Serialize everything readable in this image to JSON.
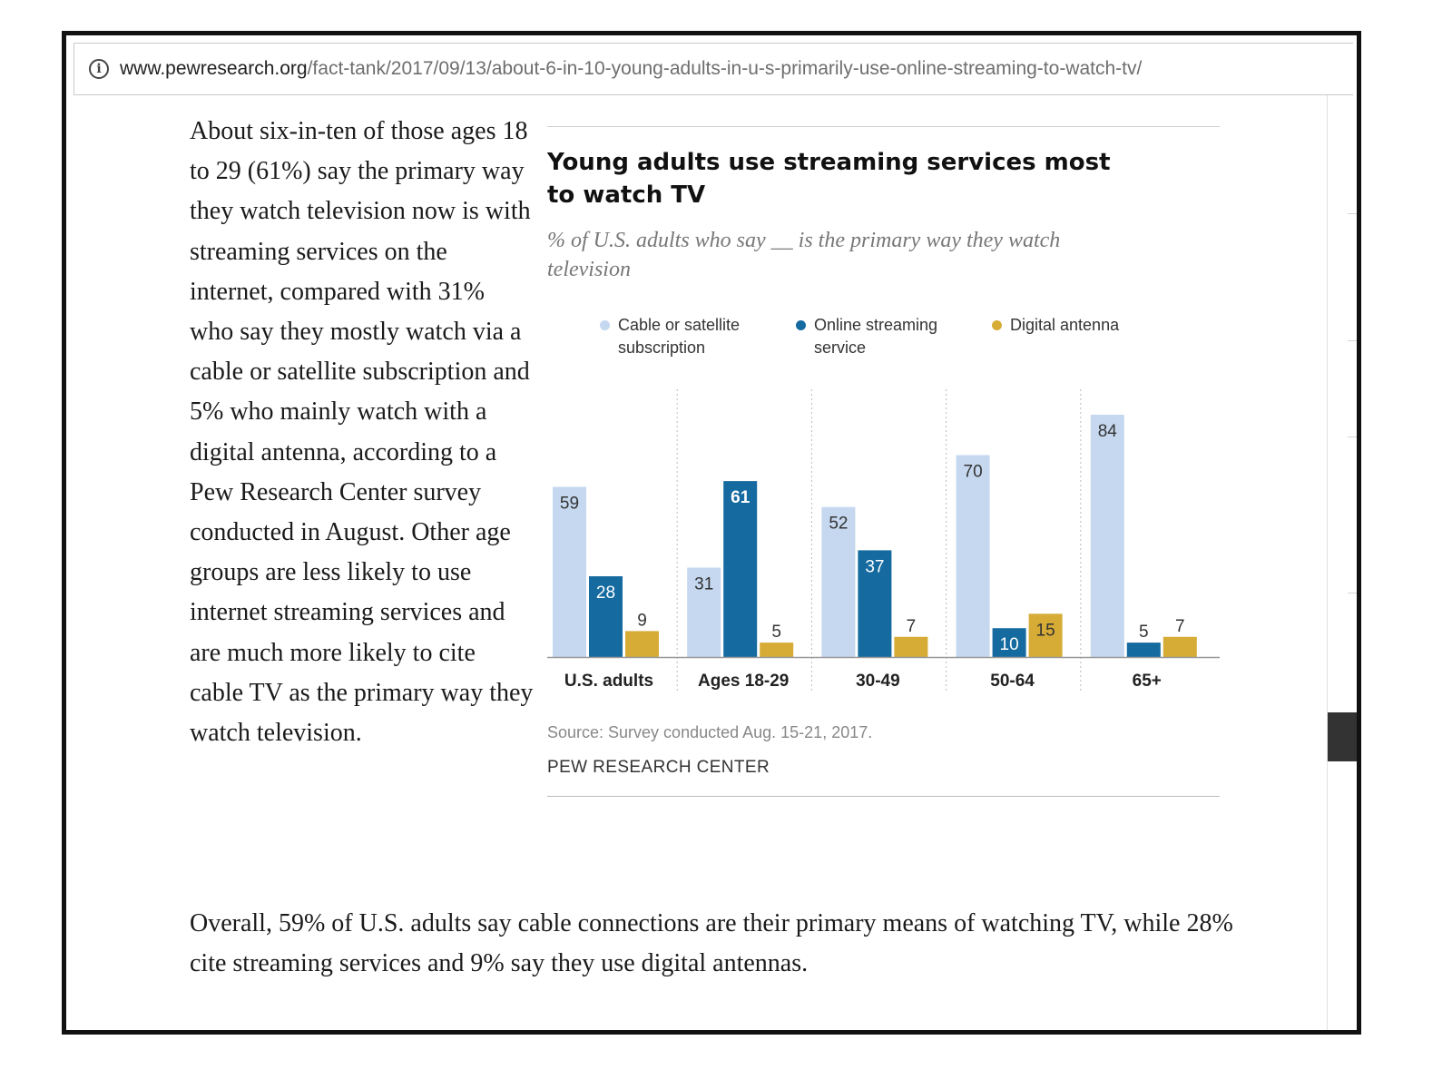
{
  "browser": {
    "url_domain": "www.pewresearch.org",
    "url_path": "/fact-tank/2017/09/13/about-6-in-10-young-adults-in-u-s-primarily-use-online-streaming-to-watch-tv/"
  },
  "article": {
    "paragraph1": "About six-in-ten of those ages 18 to 29 (61%) say the primary way they watch television now is with streaming services on the internet, compared with 31% who say they mostly watch via a cable or satellite subscription and 5% who mainly watch with a digital antenna, according to a Pew Research Center survey conducted in August. Other age groups are less likely to use internet streaming services and are much more likely to cite cable TV as the primary way they watch television.",
    "paragraph2": "Overall, 59% of U.S. adults say cable connections are their primary means of watching TV, while 28% cite streaming services and 9% say they use digital antennas."
  },
  "chart_data": {
    "type": "bar",
    "title": "Young adults use streaming services most to watch TV",
    "subtitle": "% of U.S. adults who say __ is the primary way they watch television",
    "categories": [
      "U.S. adults",
      "Ages 18-29",
      "30-49",
      "50-64",
      "65+"
    ],
    "series": [
      {
        "name": "Cable or satellite subscription",
        "color": "#c5d8ef",
        "values": [
          59,
          31,
          52,
          70,
          84
        ]
      },
      {
        "name": "Online streaming service",
        "color": "#156aa0",
        "values": [
          28,
          61,
          37,
          10,
          5
        ]
      },
      {
        "name": "Digital antenna",
        "color": "#d6ac37",
        "values": [
          9,
          5,
          7,
          15,
          7
        ]
      }
    ],
    "ylim": [
      0,
      84
    ],
    "source": "Source: Survey conducted Aug. 15-21, 2017.",
    "credit": "PEW RESEARCH CENTER"
  }
}
